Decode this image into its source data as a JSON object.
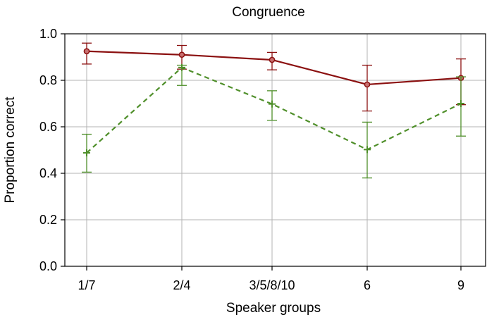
{
  "chart_data": {
    "type": "line",
    "title": "Congruence",
    "xlabel": "Speaker groups",
    "ylabel": "Proportion correct",
    "categories": [
      "1/7",
      "2/4",
      "3/5/8/10",
      "6",
      "9"
    ],
    "ylim": [
      0.0,
      1.0
    ],
    "yticks": [
      "0.0",
      "0.2",
      "0.4",
      "0.6",
      "0.8",
      "1.0"
    ],
    "grid": true,
    "series": [
      {
        "color": "#8b1010",
        "line_style": "solid",
        "marker": "circle",
        "values": [
          0.925,
          0.91,
          0.888,
          0.782,
          0.81
        ],
        "err_low": [
          0.87,
          0.848,
          0.845,
          0.668,
          0.695
        ],
        "err_high": [
          0.96,
          0.95,
          0.92,
          0.865,
          0.892
        ]
      },
      {
        "color": "#4f8f2a",
        "line_style": "dashed",
        "marker": "plus",
        "values": [
          0.488,
          0.855,
          0.698,
          0.502,
          0.7
        ],
        "err_low": [
          0.405,
          0.778,
          0.628,
          0.38,
          0.56
        ],
        "err_high": [
          0.568,
          0.865,
          0.755,
          0.62,
          0.815
        ]
      }
    ]
  }
}
